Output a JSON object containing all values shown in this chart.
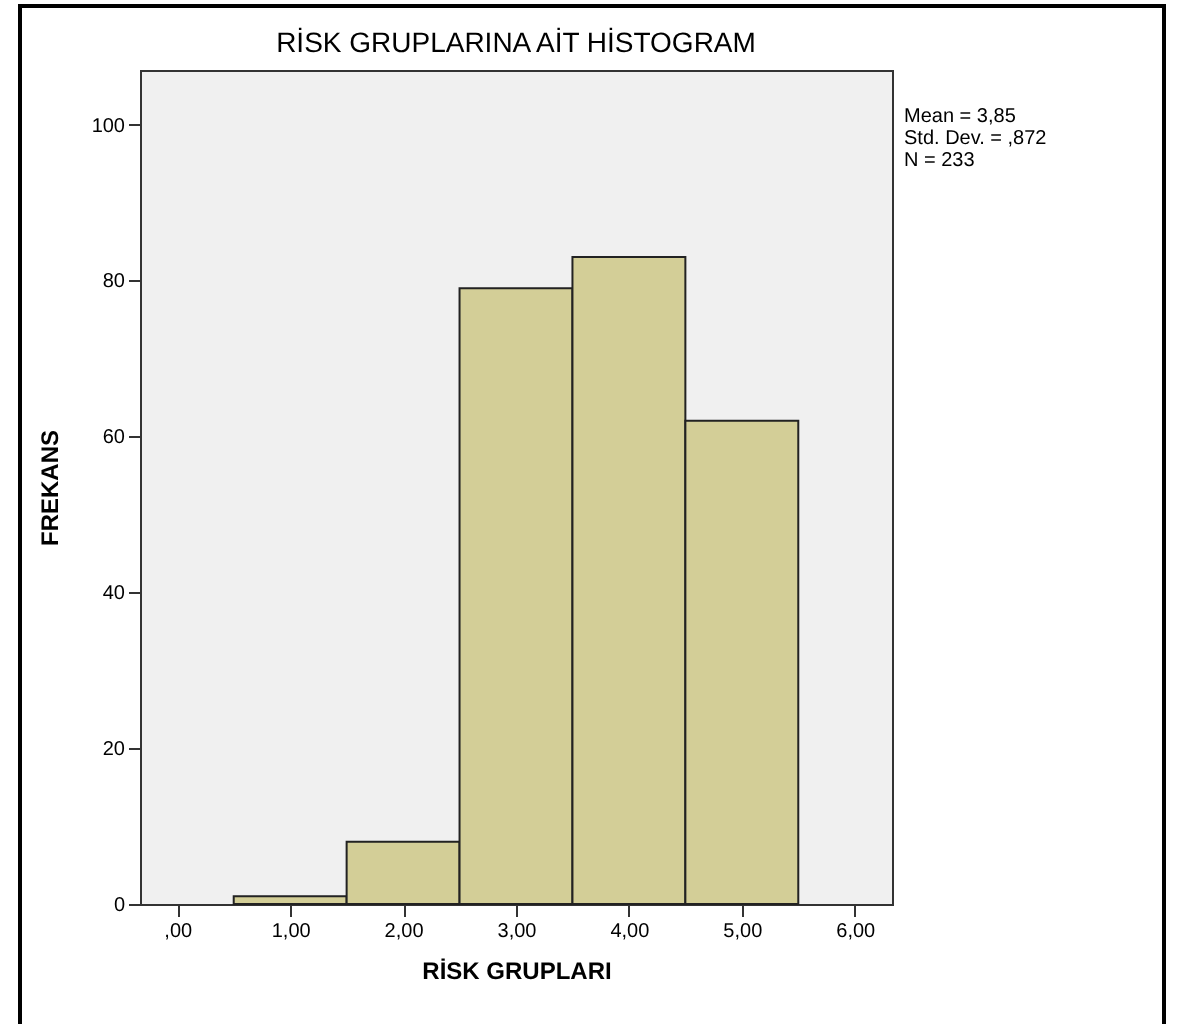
{
  "chart_data": {
    "type": "histogram",
    "title": "RİSK GRUPLARINA AİT HİSTOGRAM",
    "xlabel": "RİSK GRUPLARI",
    "ylabel": "FREKANS",
    "bins": [
      0.5,
      1.5,
      2.5,
      3.5,
      4.5,
      5.5
    ],
    "values": [
      1,
      8,
      79,
      83,
      62
    ],
    "color": "#d3ce97",
    "xlim": [
      -0.33,
      6.33
    ],
    "xticks": [
      {
        "value": 0,
        "label": ",00"
      },
      {
        "value": 1,
        "label": "1,00"
      },
      {
        "value": 2,
        "label": "2,00"
      },
      {
        "value": 3,
        "label": "3,00"
      },
      {
        "value": 4,
        "label": "4,00"
      },
      {
        "value": 5,
        "label": "5,00"
      },
      {
        "value": 6,
        "label": "6,00"
      }
    ],
    "ylim": [
      0,
      107
    ],
    "yticks": [
      0,
      20,
      40,
      60,
      80,
      100
    ],
    "grid": false,
    "annotations": [
      "Mean = 3,85",
      "Std. Dev. = ,872",
      "N = 233"
    ]
  }
}
